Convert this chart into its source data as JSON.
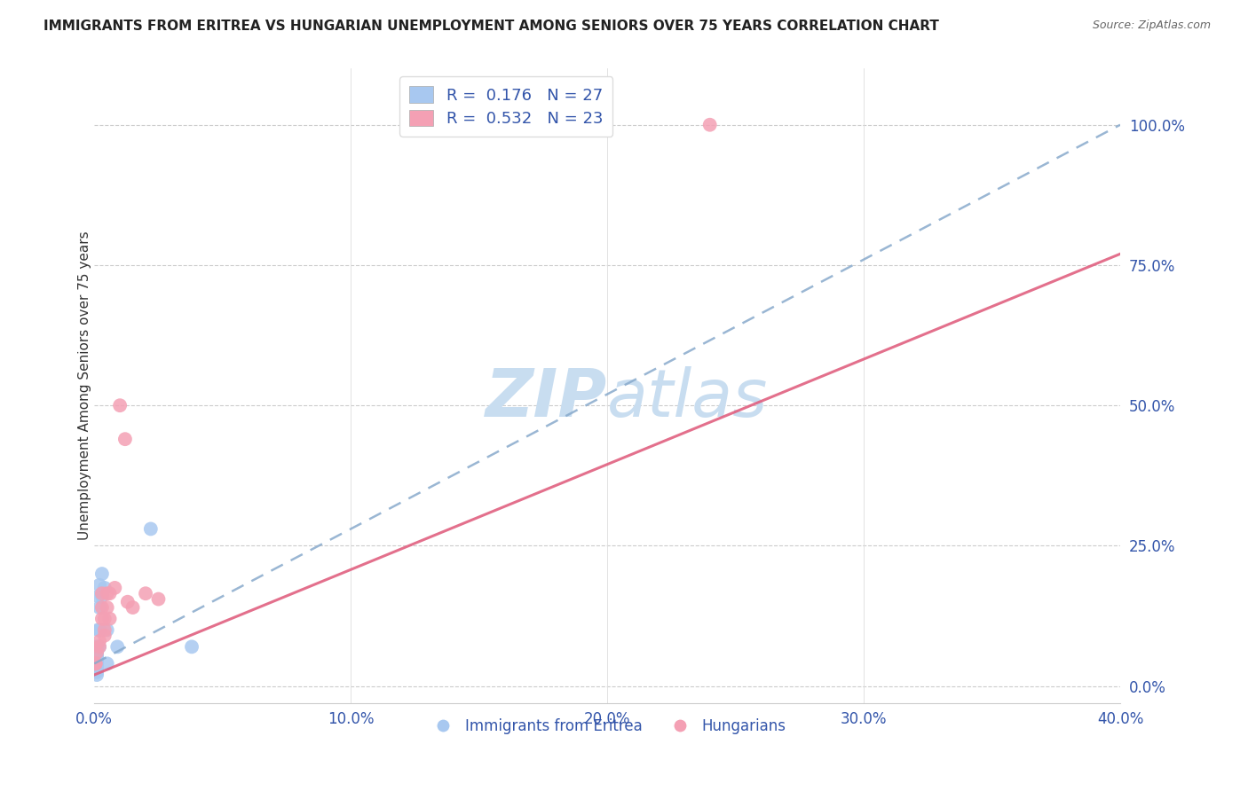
{
  "title": "IMMIGRANTS FROM ERITREA VS HUNGARIAN UNEMPLOYMENT AMONG SENIORS OVER 75 YEARS CORRELATION CHART",
  "source": "Source: ZipAtlas.com",
  "xlabel_ticks": [
    "0.0%",
    "10.0%",
    "20.0%",
    "30.0%",
    "40.0%"
  ],
  "xlabel_vals": [
    0.0,
    0.1,
    0.2,
    0.3,
    0.4
  ],
  "ylabel": "Unemployment Among Seniors over 75 years",
  "blue_R": 0.176,
  "blue_N": 27,
  "pink_R": 0.532,
  "pink_N": 23,
  "blue_color": "#a8c8f0",
  "pink_color": "#f4a0b4",
  "blue_line_color": "#88aacc",
  "pink_line_color": "#e06080",
  "axis_label_color": "#3355aa",
  "watermark_color": "#c8ddf0",
  "blue_scatter_x": [
    0.0005,
    0.0005,
    0.001,
    0.001,
    0.001,
    0.001,
    0.001,
    0.001,
    0.001,
    0.001,
    0.001,
    0.001,
    0.001,
    0.0015,
    0.0015,
    0.002,
    0.002,
    0.002,
    0.002,
    0.003,
    0.003,
    0.004,
    0.005,
    0.005,
    0.009,
    0.022,
    0.038
  ],
  "blue_scatter_y": [
    0.03,
    0.05,
    0.02,
    0.025,
    0.03,
    0.035,
    0.04,
    0.045,
    0.05,
    0.055,
    0.06,
    0.065,
    0.07,
    0.1,
    0.16,
    0.07,
    0.1,
    0.14,
    0.18,
    0.16,
    0.2,
    0.175,
    0.1,
    0.04,
    0.07,
    0.28,
    0.07
  ],
  "pink_scatter_x": [
    0.0005,
    0.0005,
    0.001,
    0.002,
    0.002,
    0.003,
    0.003,
    0.003,
    0.004,
    0.004,
    0.004,
    0.005,
    0.005,
    0.006,
    0.006,
    0.008,
    0.01,
    0.012,
    0.013,
    0.015,
    0.02,
    0.025,
    0.24
  ],
  "pink_scatter_y": [
    0.04,
    0.04,
    0.06,
    0.07,
    0.08,
    0.12,
    0.14,
    0.165,
    0.09,
    0.1,
    0.12,
    0.14,
    0.165,
    0.165,
    0.12,
    0.175,
    0.5,
    0.44,
    0.15,
    0.14,
    0.165,
    0.155,
    1.0
  ],
  "blue_trend_x": [
    0.0,
    0.4
  ],
  "blue_trend_y": [
    0.04,
    1.0
  ],
  "pink_trend_x": [
    0.0,
    0.4
  ],
  "pink_trend_y": [
    0.02,
    0.77
  ],
  "xmin": 0.0,
  "xmax": 0.4,
  "ymin": -0.03,
  "ymax": 1.1,
  "ytick_vals": [
    0.0,
    0.25,
    0.5,
    0.75,
    1.0
  ],
  "ytick_labels": [
    "0.0%",
    "25.0%",
    "50.0%",
    "75.0%",
    "100.0%"
  ]
}
